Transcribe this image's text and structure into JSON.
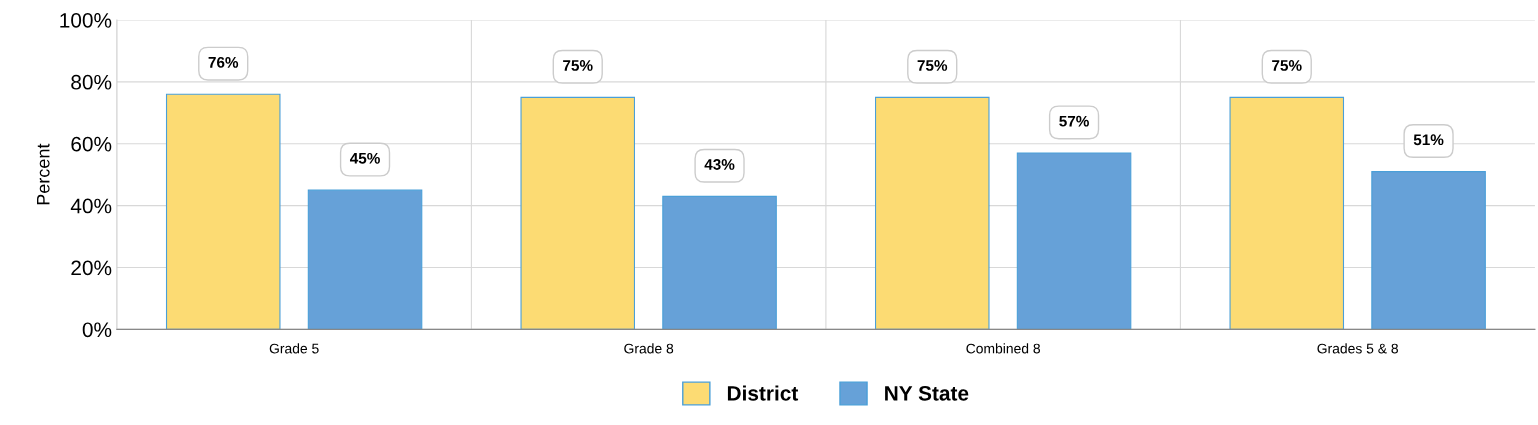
{
  "chart_data": {
    "type": "bar",
    "categories": [
      "Grade 5",
      "Grade 8",
      "Combined 8",
      "Grades 5 & 8"
    ],
    "ylabel": "Percent",
    "ylim": [
      0,
      100
    ],
    "yticks": [
      {
        "value": 0,
        "label": "0%"
      },
      {
        "value": 20,
        "label": "20%"
      },
      {
        "value": 40,
        "label": "40%"
      },
      {
        "value": 60,
        "label": "60%"
      },
      {
        "value": 80,
        "label": "80%"
      },
      {
        "value": 100,
        "label": "100%"
      }
    ],
    "series": [
      {
        "name": "District",
        "color": "#fcdb73",
        "values": [
          76,
          75,
          75,
          75
        ],
        "value_labels": [
          "76%",
          "75%",
          "75%",
          "75%"
        ]
      },
      {
        "name": "NY State",
        "color": "#66a1d8",
        "values": [
          45,
          43,
          57,
          51
        ],
        "value_labels": [
          "45%",
          "43%",
          "57%",
          "51%"
        ]
      }
    ],
    "grid": true,
    "legend": "bottom"
  }
}
